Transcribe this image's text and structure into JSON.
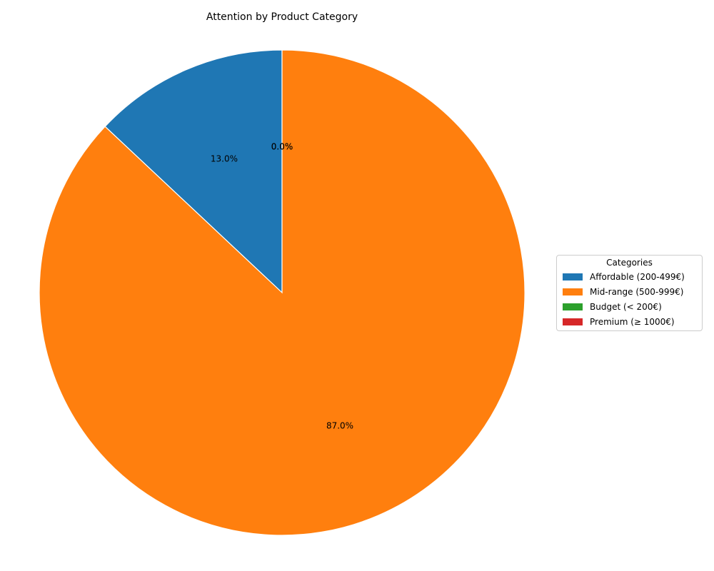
{
  "chart_data": {
    "type": "pie",
    "title": "Attention by Product Category",
    "categories": [
      "Affordable (200-499€)",
      "Mid-range (500-999€)",
      "Budget (< 200€)",
      "Premium (≥ 1000€)"
    ],
    "values": [
      13.0,
      87.0,
      0.0,
      0.0
    ],
    "percent_labels": [
      "13.0%",
      "87.0%",
      "0.0%",
      "0.0%"
    ],
    "colors": [
      "#1f77b4",
      "#ff7f0e",
      "#2ca02c",
      "#d62728"
    ],
    "start_angle": "top (90°)",
    "direction": "counter-clockwise",
    "legend": {
      "title": "Categories",
      "placement": "center-right"
    }
  }
}
